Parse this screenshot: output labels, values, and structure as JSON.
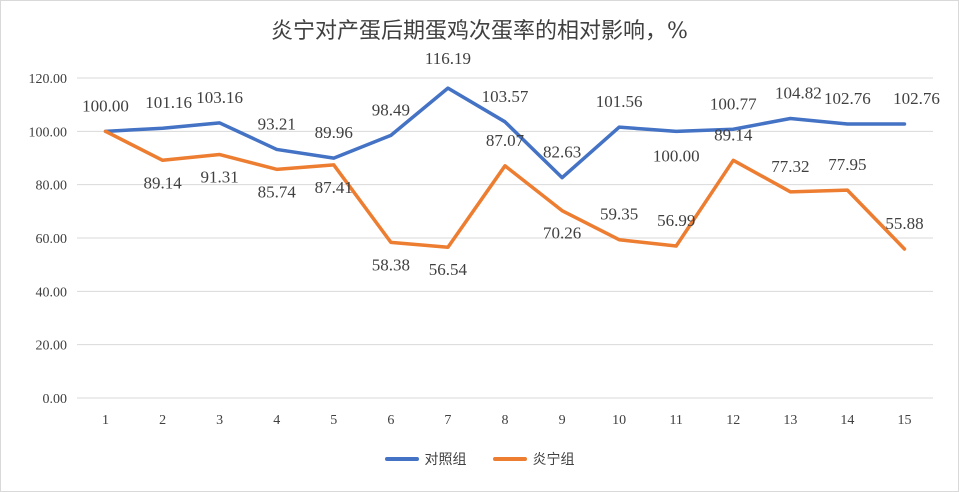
{
  "chart_data": {
    "type": "line",
    "title": "炎宁对产蛋后期蛋鸡次蛋率的相对影响，%",
    "x": [
      "1",
      "2",
      "3",
      "4",
      "5",
      "6",
      "7",
      "8",
      "9",
      "10",
      "11",
      "12",
      "13",
      "14",
      "15"
    ],
    "ylim": [
      0,
      120
    ],
    "yticks": [
      "0.00",
      "20.00",
      "40.00",
      "60.00",
      "80.00",
      "100.00",
      "120.00"
    ],
    "grid": true,
    "legend_position": "bottom",
    "series": [
      {
        "name": "对照组",
        "color": "#4472c4",
        "values": [
          100.0,
          101.16,
          103.16,
          93.21,
          89.96,
          98.49,
          116.19,
          103.57,
          82.63,
          101.56,
          100.0,
          100.77,
          104.82,
          102.76,
          102.76
        ],
        "labels": [
          "100.00",
          "101.16",
          "103.16",
          "93.21",
          "89.96",
          "98.49",
          "116.19",
          "103.57",
          "82.63",
          "101.56",
          "100.00",
          "100.77",
          "104.82",
          "102.76",
          "102.76"
        ]
      },
      {
        "name": "炎宁组",
        "color": "#ed7d31",
        "values": [
          100.0,
          89.14,
          91.31,
          85.74,
          87.41,
          58.38,
          56.54,
          87.07,
          70.26,
          59.35,
          56.99,
          89.14,
          77.32,
          77.95,
          55.88
        ],
        "labels": [
          "",
          "89.14",
          "91.31",
          "85.74",
          "87.41",
          "58.38",
          "56.54",
          "87.07",
          "70.26",
          "59.35",
          "56.99",
          "89.14",
          "77.32",
          "77.95",
          "55.88"
        ]
      }
    ]
  }
}
